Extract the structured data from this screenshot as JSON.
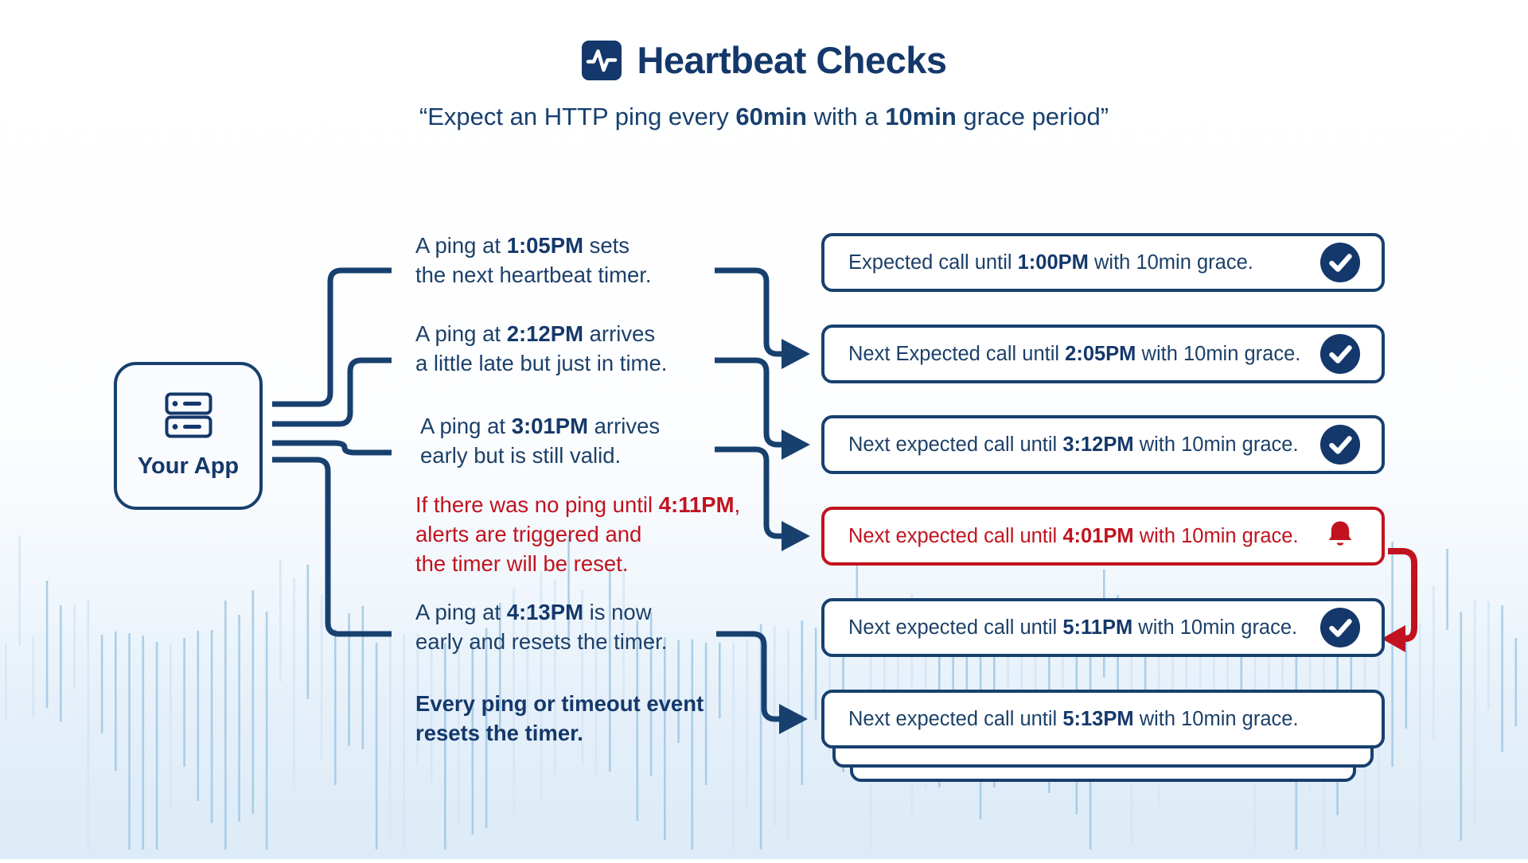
{
  "header": {
    "title": "Heartbeat Checks",
    "title_icon": "pulse-icon",
    "subtitle_pre": "“Expect an HTTP ping every ",
    "subtitle_interval": "60min",
    "subtitle_mid": " with a ",
    "subtitle_grace": "10min",
    "subtitle_post": " grace period”"
  },
  "app": {
    "label": "Your App",
    "icon": "server-icon"
  },
  "steps": [
    {
      "pre": "A ping at ",
      "time": "1:05PM",
      "post": " sets",
      "line2": "the next heartbeat timer.",
      "tone": "normal"
    },
    {
      "pre": "A ping at ",
      "time": "2:12PM",
      "post": " arrives",
      "line2": "a little late but just in time.",
      "tone": "normal"
    },
    {
      "pre": "A ping at ",
      "time": "3:01PM",
      "post": " arrives",
      "line2": "early but is still valid.",
      "tone": "normal"
    },
    {
      "pre": "If there was no ping until ",
      "time": "4:11PM",
      "post": ",",
      "line2": "alerts are triggered and",
      "line3": "the timer will be reset.",
      "tone": "alert"
    },
    {
      "pre": "A ping at ",
      "time": "4:13PM",
      "post": " is now",
      "line2": "early and resets the timer.",
      "tone": "normal"
    },
    {
      "line1": "Every ping or timeout event",
      "line2": "resets the timer.",
      "tone": "emphasis"
    }
  ],
  "boxes": [
    {
      "pre": "Expected call until ",
      "time": "1:00PM",
      "post": " with 10min grace.",
      "status": "ok",
      "icon": "check-icon"
    },
    {
      "pre": "Next Expected call until ",
      "time": "2:05PM",
      "post": " with 10min grace.",
      "status": "ok",
      "icon": "check-icon"
    },
    {
      "pre": "Next expected call until ",
      "time": "3:12PM",
      "post": " with 10min grace.",
      "status": "ok",
      "icon": "check-icon"
    },
    {
      "pre": "Next expected call until ",
      "time": "4:01PM",
      "post": " with 10min grace.",
      "status": "alert",
      "icon": "bell-icon"
    },
    {
      "pre": "Next expected call until ",
      "time": "5:11PM",
      "post": " with 10min grace.",
      "status": "ok",
      "icon": "check-icon"
    },
    {
      "pre": "Next expected call until ",
      "time": "5:13PM",
      "post": " with 10min grace.",
      "status": "none",
      "icon": "none"
    }
  ],
  "colors": {
    "navy": "#17406e",
    "navy_text": "#1c4069",
    "red": "#c1131f",
    "box_bg": "#ffffff",
    "bg_bottom_tint": "#dcebf7",
    "wave_bar_dark": "#9fc8e4",
    "wave_bar_light": "#d3e5f4"
  }
}
